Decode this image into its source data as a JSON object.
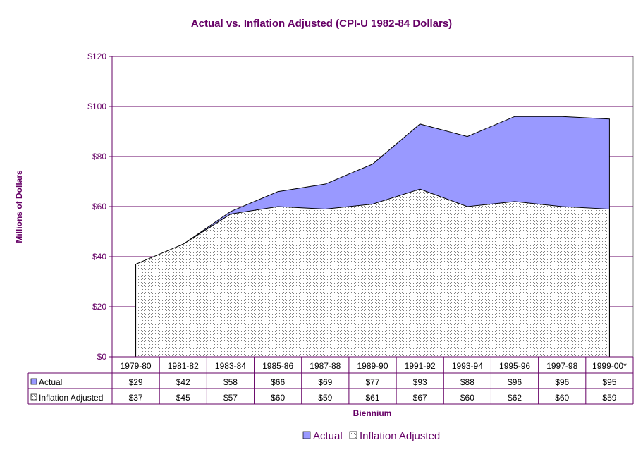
{
  "chart_data": {
    "type": "area",
    "title": "Actual vs. Inflation Adjusted (CPI-U 1982-84 Dollars)",
    "xlabel": "Biennium",
    "ylabel": "Millions of Dollars",
    "ylim": [
      0,
      120
    ],
    "y_ticks": [
      "$0",
      "$20",
      "$40",
      "$60",
      "$80",
      "$100",
      "$120"
    ],
    "y_tick_values": [
      0,
      20,
      40,
      60,
      80,
      100,
      120
    ],
    "categories": [
      "1979-80",
      "1981-82",
      "1983-84",
      "1985-86",
      "1987-88",
      "1989-90",
      "1991-92",
      "1993-94",
      "1995-96",
      "1997-98",
      "1999-00*"
    ],
    "grid": true,
    "legend": "bottom",
    "series": [
      {
        "name": "Actual",
        "values": [
          29,
          42,
          58,
          66,
          69,
          77,
          93,
          88,
          96,
          96,
          95
        ],
        "labels": [
          "$29",
          "$42",
          "$58",
          "$66",
          "$69",
          "$77",
          "$93",
          "$88",
          "$96",
          "$96",
          "$95"
        ],
        "color": "#9999ff"
      },
      {
        "name": "Inflation Adjusted",
        "values": [
          37,
          45,
          57,
          60,
          59,
          61,
          67,
          60,
          62,
          60,
          59
        ],
        "labels": [
          "$37",
          "$45",
          "$57",
          "$60",
          "$59",
          "$61",
          "$67",
          "$60",
          "$62",
          "$60",
          "$59"
        ],
        "color": "#ffffff",
        "pattern": "dotted"
      }
    ],
    "colors": {
      "text": "#660066",
      "grid": "#660066",
      "axis": "#660066"
    }
  }
}
